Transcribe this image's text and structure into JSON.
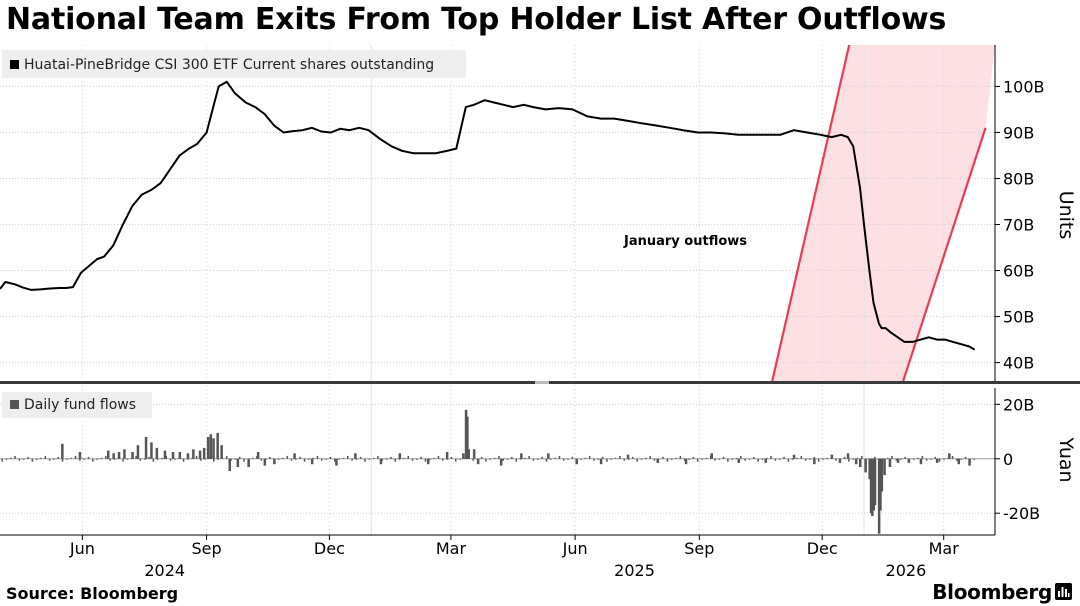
{
  "title": "National Team Exits From Top Holder List After Outflows",
  "source": "Source: Bloomberg",
  "brand": "Bloomberg",
  "brand_icon": "bloomberg-bars-icon",
  "colors": {
    "line": "#000000",
    "bars": "#555555",
    "band_fill": "#fde0e4",
    "band_edge": "#ec3b57",
    "grid": "#cfcfcf",
    "legend_bg": "#eeeeee"
  },
  "chart_data": [
    {
      "type": "line",
      "legend": "Huatai-PineBridge CSI 300 ETF Current shares outstanding",
      "ylabel": "Units",
      "ylim": [
        36,
        109
      ],
      "yticks": [
        40,
        50,
        60,
        70,
        80,
        90,
        100
      ],
      "ytick_labels": [
        "40B",
        "50B",
        "60B",
        "70B",
        "80B",
        "90B",
        "100B"
      ],
      "grid": true,
      "annotation": "January outflows",
      "band": {
        "description": "shaded slanted band",
        "left_edge": [
          [
            "2025-10-25",
            36
          ],
          [
            "2025-12-21",
            109
          ]
        ],
        "right_edge": [
          [
            "2026-01-30",
            36
          ],
          [
            "2026-04-01",
            91
          ]
        ]
      },
      "series": [
        {
          "x": [
            "2024-04-01",
            "2024-04-05",
            "2024-04-12",
            "2024-04-18",
            "2024-04-24",
            "2024-05-01",
            "2024-05-08",
            "2024-05-15",
            "2024-05-20",
            "2024-05-25",
            "2024-05-31",
            "2024-06-06",
            "2024-06-12",
            "2024-06-17",
            "2024-06-24",
            "2024-07-01",
            "2024-07-08",
            "2024-07-15",
            "2024-07-22",
            "2024-07-29",
            "2024-08-05",
            "2024-08-12",
            "2024-08-19",
            "2024-08-25",
            "2024-09-01",
            "2024-09-05",
            "2024-09-10",
            "2024-09-16",
            "2024-09-22",
            "2024-09-30",
            "2024-10-07",
            "2024-10-14",
            "2024-10-21",
            "2024-10-28",
            "2024-11-04",
            "2024-11-11",
            "2024-11-18",
            "2024-11-25",
            "2024-12-02",
            "2024-12-09",
            "2024-12-16",
            "2024-12-23",
            "2024-12-30",
            "2025-01-08",
            "2025-01-16",
            "2025-01-24",
            "2025-02-01",
            "2025-02-10",
            "2025-02-18",
            "2025-02-26",
            "2025-03-05",
            "2025-03-12",
            "2025-03-18",
            "2025-03-22",
            "2025-03-26",
            "2025-04-02",
            "2025-04-09",
            "2025-04-16",
            "2025-04-24",
            "2025-05-01",
            "2025-05-10",
            "2025-05-20",
            "2025-05-30",
            "2025-06-10",
            "2025-06-20",
            "2025-06-30",
            "2025-07-10",
            "2025-07-20",
            "2025-07-31",
            "2025-08-10",
            "2025-08-20",
            "2025-08-31",
            "2025-09-10",
            "2025-09-20",
            "2025-09-30",
            "2025-10-10",
            "2025-10-20",
            "2025-10-31",
            "2025-11-10",
            "2025-11-20",
            "2025-11-30",
            "2025-12-08",
            "2025-12-15",
            "2025-12-20",
            "2025-12-24",
            "2025-12-29",
            "2026-01-01",
            "2026-01-05",
            "2026-01-08",
            "2026-01-12",
            "2026-01-14",
            "2026-01-17",
            "2026-01-21",
            "2026-01-26",
            "2026-01-31",
            "2026-02-06",
            "2026-02-12",
            "2026-02-18",
            "2026-02-24",
            "2026-03-02",
            "2026-03-08",
            "2026-03-14",
            "2026-03-20",
            "2026-03-24"
          ],
          "values": [
            56.0,
            57.5,
            57.0,
            56.3,
            55.8,
            55.9,
            56.1,
            56.2,
            56.2,
            56.4,
            59.5,
            61.0,
            62.5,
            63.0,
            65.5,
            70.0,
            74.0,
            76.5,
            77.5,
            79.0,
            82.0,
            85.0,
            86.5,
            87.5,
            90.0,
            94.5,
            100.0,
            101.0,
            98.5,
            96.5,
            95.5,
            94.0,
            91.5,
            90.0,
            90.3,
            90.5,
            91.0,
            90.2,
            90.0,
            90.8,
            90.5,
            91.0,
            90.5,
            88.5,
            87.0,
            86.0,
            85.5,
            85.5,
            85.5,
            86.0,
            86.5,
            95.5,
            96.0,
            96.5,
            97.0,
            96.5,
            96.0,
            95.5,
            96.0,
            95.5,
            95.0,
            95.3,
            95.0,
            93.5,
            93.0,
            93.0,
            92.5,
            92.0,
            91.5,
            91.0,
            90.5,
            90.0,
            90.0,
            89.8,
            89.5,
            89.5,
            89.5,
            89.5,
            90.5,
            90.0,
            89.5,
            89.0,
            89.5,
            89.0,
            87.0,
            78.0,
            70.0,
            60.0,
            53.0,
            48.5,
            47.5,
            47.5,
            46.5,
            45.5,
            44.5,
            44.5,
            45.0,
            45.5,
            45.0,
            45.0,
            44.5,
            44.0,
            43.5,
            42.8
          ]
        }
      ]
    },
    {
      "type": "bar",
      "legend": "Daily fund flows",
      "ylabel": "Yuan",
      "ylim": [
        -28,
        26
      ],
      "yticks": [
        -20,
        0,
        20
      ],
      "ytick_labels": [
        "-20B",
        "0",
        "20B"
      ],
      "grid": true,
      "x": [
        "2024-05-17",
        "2024-05-30",
        "2024-06-20",
        "2024-06-24",
        "2024-06-28",
        "2024-07-02",
        "2024-07-08",
        "2024-07-12",
        "2024-07-18",
        "2024-07-22",
        "2024-07-26",
        "2024-08-01",
        "2024-08-07",
        "2024-08-12",
        "2024-08-18",
        "2024-08-22",
        "2024-08-27",
        "2024-08-30",
        "2024-09-02",
        "2024-09-04",
        "2024-09-06",
        "2024-09-09",
        "2024-09-12",
        "2024-09-18",
        "2024-09-24",
        "2024-10-02",
        "2024-10-09",
        "2024-10-14",
        "2024-10-21",
        "2024-11-05",
        "2024-11-18",
        "2024-12-06",
        "2024-12-20",
        "2025-01-08",
        "2025-01-22",
        "2025-02-12",
        "2025-02-26",
        "2025-03-10",
        "2025-03-12",
        "2025-03-13",
        "2025-03-14",
        "2025-03-18",
        "2025-03-21",
        "2025-04-07",
        "2025-04-22",
        "2025-05-12",
        "2025-06-02",
        "2025-06-20",
        "2025-07-10",
        "2025-08-01",
        "2025-08-22",
        "2025-09-10",
        "2025-09-30",
        "2025-10-20",
        "2025-11-10",
        "2025-11-25",
        "2025-12-08",
        "2025-12-14",
        "2025-12-20",
        "2025-12-26",
        "2025-12-29",
        "2026-01-02",
        "2026-01-05",
        "2026-01-06",
        "2026-01-07",
        "2026-01-08",
        "2026-01-09",
        "2026-01-12",
        "2026-01-13",
        "2026-01-14",
        "2026-01-16",
        "2026-01-20",
        "2026-01-26",
        "2026-02-03",
        "2026-02-12",
        "2026-02-24",
        "2026-03-05",
        "2026-03-12",
        "2026-03-20"
      ],
      "values": [
        5.5,
        2.5,
        3.0,
        2.0,
        2.5,
        3.5,
        2.5,
        5.0,
        8.0,
        6.0,
        4.0,
        3.0,
        2.5,
        2.5,
        2.0,
        3.5,
        3.0,
        4.0,
        8.0,
        9.0,
        7.5,
        9.5,
        5.0,
        -4.5,
        -3.0,
        -3.0,
        2.5,
        -2.5,
        -2.0,
        2.0,
        -2.0,
        -2.5,
        2.0,
        -2.0,
        2.0,
        -2.0,
        2.5,
        2.0,
        18.0,
        15.5,
        3.5,
        3.5,
        -2.0,
        -2.5,
        2.0,
        2.0,
        -2.0,
        -2.0,
        1.5,
        -1.5,
        -2.0,
        2.0,
        -1.5,
        -1.5,
        1.5,
        -2.0,
        1.5,
        -1.5,
        2.0,
        -2.0,
        -3.0,
        -5.0,
        -7.5,
        -20.0,
        -21.0,
        -19.0,
        -17.0,
        -27.5,
        -19.0,
        -12.0,
        -6.0,
        -3.0,
        -1.5,
        -1.5,
        -2.0,
        -1.5,
        2.0,
        -2.0,
        -2.5
      ]
    }
  ],
  "x_axis": {
    "months": [
      {
        "date": "2024-06-01",
        "label": "Jun"
      },
      {
        "date": "2024-09-01",
        "label": "Sep"
      },
      {
        "date": "2024-12-01",
        "label": "Dec"
      },
      {
        "date": "2025-03-01",
        "label": "Mar"
      },
      {
        "date": "2025-06-01",
        "label": "Jun"
      },
      {
        "date": "2025-09-01",
        "label": "Sep"
      },
      {
        "date": "2025-12-01",
        "label": "Dec"
      },
      {
        "date": "2026-03-01",
        "label": "Mar"
      }
    ],
    "years": [
      {
        "date": "2024-08-01",
        "label": "2024"
      },
      {
        "date": "2025-07-15",
        "label": "2025"
      },
      {
        "date": "2026-02-01",
        "label": "2026"
      }
    ],
    "year_boundaries": [
      "2025-01-01",
      "2026-01-01"
    ]
  }
}
